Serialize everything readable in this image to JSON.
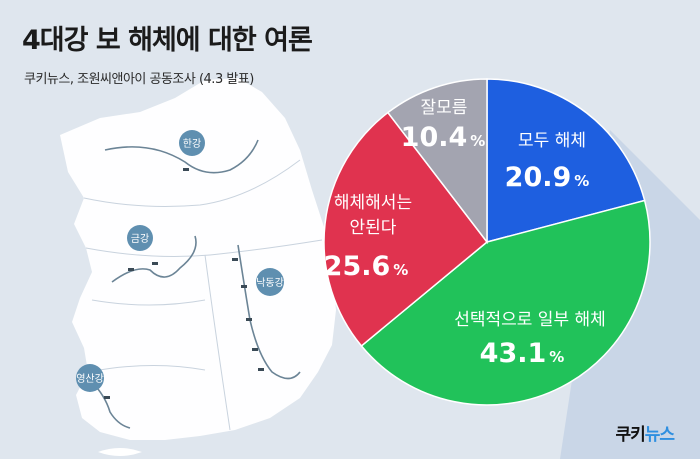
{
  "title": "4대강 보 해체에 대한 여론",
  "subtitle": "쿠키뉴스, 조원씨앤아이 공동조사 (4.3 발표)",
  "logo": {
    "part1": "쿠키",
    "part2": "뉴스"
  },
  "rivers": [
    "한강",
    "금강",
    "낙동강",
    "영산강"
  ],
  "colors": {
    "모두 해체": "#1e5fe0",
    "선택적으로 일부 해체": "#21c25a",
    "해체해서는 안된다": "#e0334f",
    "잘모름": "#a3a4b0"
  },
  "chart_data": {
    "type": "pie",
    "title": "4대강 보 해체에 대한 여론",
    "subtitle": "쿠키뉴스, 조원씨앤아이 공동조사 (4.3 발표)",
    "unit": "%",
    "slices": [
      {
        "label": "모두 해체",
        "value": 20.9,
        "color": "#1e5fe0"
      },
      {
        "label": "선택적으로 일부 해체",
        "value": 43.1,
        "color": "#21c25a"
      },
      {
        "label": "해체해서는 안된다",
        "value": 25.6,
        "color": "#e0334f"
      },
      {
        "label": "잘모름",
        "value": 10.4,
        "color": "#a3a4b0"
      }
    ]
  }
}
